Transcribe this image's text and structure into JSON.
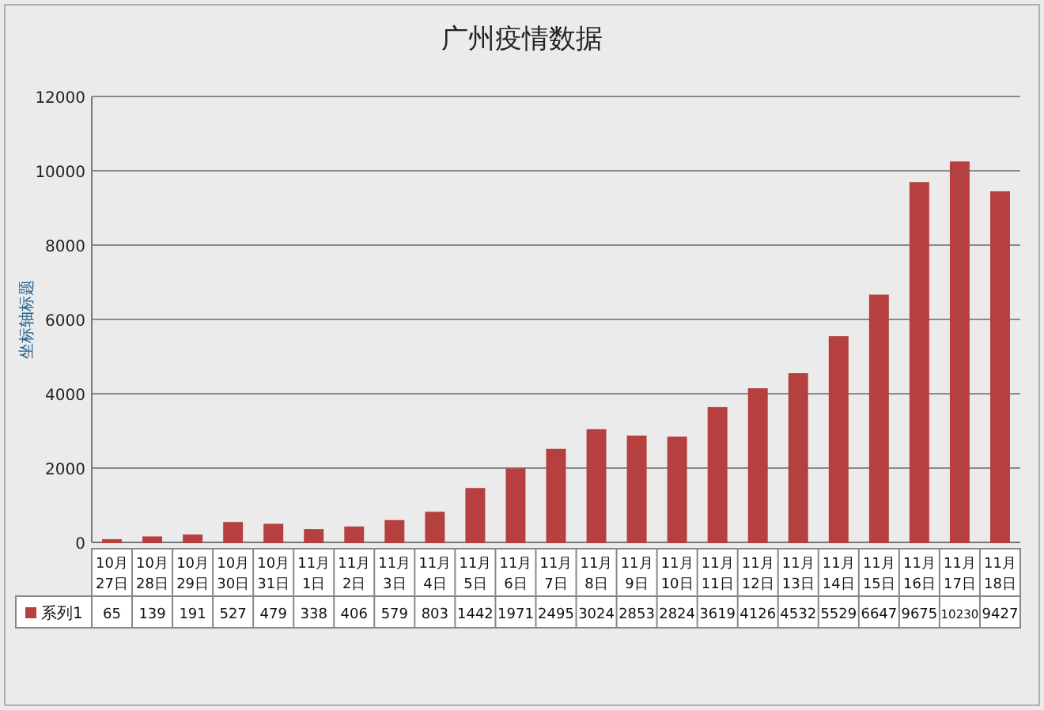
{
  "chart_data": {
    "type": "bar",
    "title": "广州疫情数据",
    "ylabel": "坐标轴标题",
    "categories": [
      "10月27日",
      "10月28日",
      "10月29日",
      "10月30日",
      "10月31日",
      "11月1日",
      "11月2日",
      "11月3日",
      "11月4日",
      "11月5日",
      "11月6日",
      "11月7日",
      "11月8日",
      "11月9日",
      "11月10日",
      "11月11日",
      "11月12日",
      "11月13日",
      "11月14日",
      "11月15日",
      "11月16日",
      "11月17日",
      "11月18日"
    ],
    "series": [
      {
        "name": "系列1",
        "color": "#b5403f",
        "values": [
          65,
          139,
          191,
          527,
          479,
          338,
          406,
          579,
          803,
          1442,
          1971,
          2495,
          3024,
          2853,
          2824,
          3619,
          4126,
          4532,
          5529,
          6647,
          9675,
          10230,
          9427
        ]
      }
    ],
    "ylim": [
      0,
      12000
    ],
    "yticks": [
      0,
      2000,
      4000,
      6000,
      8000,
      10000,
      12000
    ],
    "grid": "y",
    "data_labels": true,
    "legend": "bottom"
  }
}
